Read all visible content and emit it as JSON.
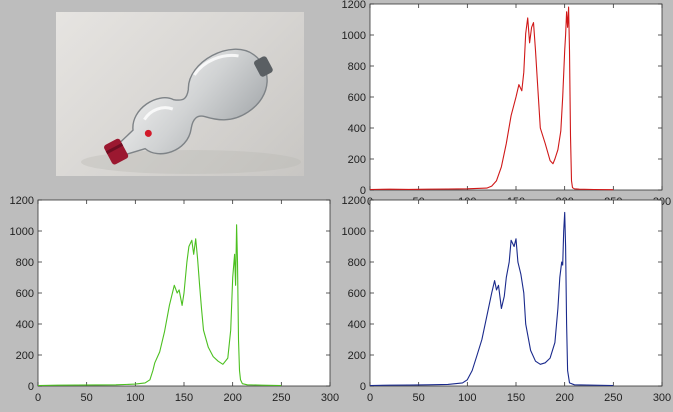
{
  "chart_data": [
    {
      "type": "line",
      "title": "",
      "color": "#d01818",
      "xlim": [
        0,
        300
      ],
      "ylim": [
        0,
        1200
      ],
      "xticks": [
        0,
        50,
        100,
        150,
        200,
        250,
        300
      ],
      "yticks": [
        0,
        200,
        400,
        600,
        800,
        1000,
        1200
      ],
      "x": [
        0,
        20,
        40,
        60,
        80,
        100,
        110,
        120,
        125,
        130,
        135,
        140,
        145,
        150,
        153,
        156,
        158,
        160,
        162,
        164,
        166,
        168,
        170,
        172,
        175,
        180,
        185,
        188,
        190,
        193,
        196,
        198,
        200,
        201,
        202,
        203,
        204,
        205,
        206,
        207,
        208,
        210,
        215,
        230,
        250
      ],
      "values": [
        3,
        5,
        4,
        5,
        6,
        8,
        10,
        12,
        25,
        60,
        150,
        300,
        480,
        600,
        680,
        640,
        760,
        1010,
        1110,
        950,
        1050,
        1080,
        900,
        700,
        400,
        300,
        190,
        170,
        200,
        260,
        380,
        600,
        900,
        1000,
        1150,
        1050,
        1180,
        900,
        350,
        60,
        15,
        8,
        5,
        3,
        2
      ]
    },
    {
      "type": "line",
      "title": "",
      "color": "#4cc020",
      "xlim": [
        0,
        300
      ],
      "ylim": [
        0,
        1200
      ],
      "xticks": [
        0,
        50,
        100,
        150,
        200,
        250,
        300
      ],
      "yticks": [
        0,
        200,
        400,
        600,
        800,
        1000,
        1200
      ],
      "x": [
        0,
        20,
        40,
        60,
        80,
        100,
        110,
        115,
        118,
        120,
        125,
        130,
        135,
        140,
        143,
        145,
        148,
        150,
        153,
        155,
        158,
        160,
        162,
        164,
        166,
        168,
        170,
        175,
        180,
        185,
        190,
        195,
        198,
        200,
        202,
        203,
        204,
        205,
        206,
        207,
        208,
        210,
        215,
        230,
        250
      ],
      "values": [
        3,
        5,
        6,
        7,
        8,
        12,
        20,
        40,
        100,
        150,
        220,
        350,
        520,
        650,
        600,
        620,
        520,
        600,
        800,
        900,
        940,
        850,
        950,
        820,
        650,
        500,
        360,
        250,
        190,
        160,
        140,
        180,
        360,
        700,
        850,
        650,
        1040,
        800,
        300,
        100,
        40,
        15,
        8,
        5,
        3
      ]
    },
    {
      "type": "line",
      "title": "",
      "color": "#1a2a8c",
      "xlim": [
        0,
        300
      ],
      "ylim": [
        0,
        1200
      ],
      "xticks": [
        0,
        50,
        100,
        150,
        200,
        250,
        300
      ],
      "yticks": [
        0,
        200,
        400,
        600,
        800,
        1000,
        1200
      ],
      "x": [
        0,
        20,
        40,
        60,
        80,
        95,
        100,
        105,
        110,
        115,
        120,
        125,
        128,
        130,
        132,
        135,
        138,
        140,
        143,
        145,
        148,
        150,
        152,
        155,
        158,
        160,
        165,
        170,
        175,
        180,
        185,
        190,
        193,
        195,
        197,
        198,
        199,
        200,
        201,
        202,
        203,
        205,
        210,
        230,
        250
      ],
      "values": [
        3,
        5,
        6,
        8,
        10,
        20,
        40,
        100,
        200,
        300,
        450,
        600,
        680,
        620,
        650,
        500,
        580,
        700,
        800,
        940,
        900,
        950,
        800,
        720,
        600,
        400,
        230,
        160,
        140,
        150,
        180,
        280,
        500,
        700,
        800,
        780,
        1000,
        1120,
        900,
        400,
        100,
        20,
        8,
        5,
        3
      ]
    }
  ]
}
